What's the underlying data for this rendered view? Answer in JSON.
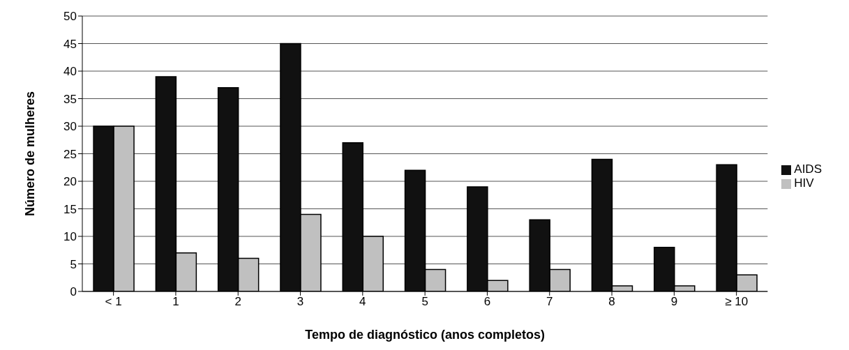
{
  "chart_data": {
    "type": "bar",
    "xlabel": "Tempo de diagnóstico (anos completos)",
    "ylabel": "Número de mulheres",
    "categories": [
      "< 1",
      "1",
      "2",
      "3",
      "4",
      "5",
      "6",
      "7",
      "8",
      "9",
      "≥ 10"
    ],
    "series": [
      {
        "name": "AIDS",
        "color": "#111111",
        "values": [
          30,
          39,
          37,
          45,
          27,
          22,
          19,
          13,
          24,
          8,
          23
        ]
      },
      {
        "name": "HIV",
        "color": "#c0c0c0",
        "values": [
          30,
          7,
          6,
          14,
          10,
          4,
          2,
          4,
          1,
          1,
          3
        ]
      }
    ],
    "ylim": [
      0,
      50
    ],
    "yticks": [
      0,
      5,
      10,
      15,
      20,
      25,
      30,
      35,
      40,
      45,
      50
    ],
    "grid": "y",
    "legend": "right"
  }
}
